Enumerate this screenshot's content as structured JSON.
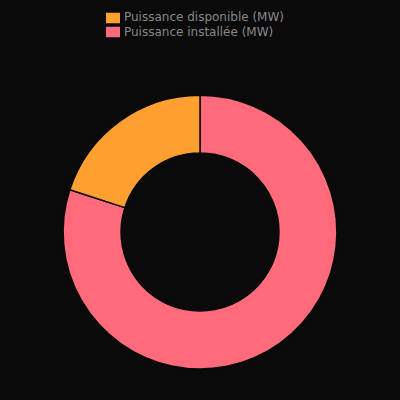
{
  "chart_data": {
    "type": "pie",
    "categories": [
      "Puissance installée (MW)",
      "Puissance disponible (MW)"
    ],
    "values": [
      0.8,
      0.2
    ],
    "colors": [
      "#FF6B7A",
      "#FFA030"
    ],
    "legend": "top"
  }
}
